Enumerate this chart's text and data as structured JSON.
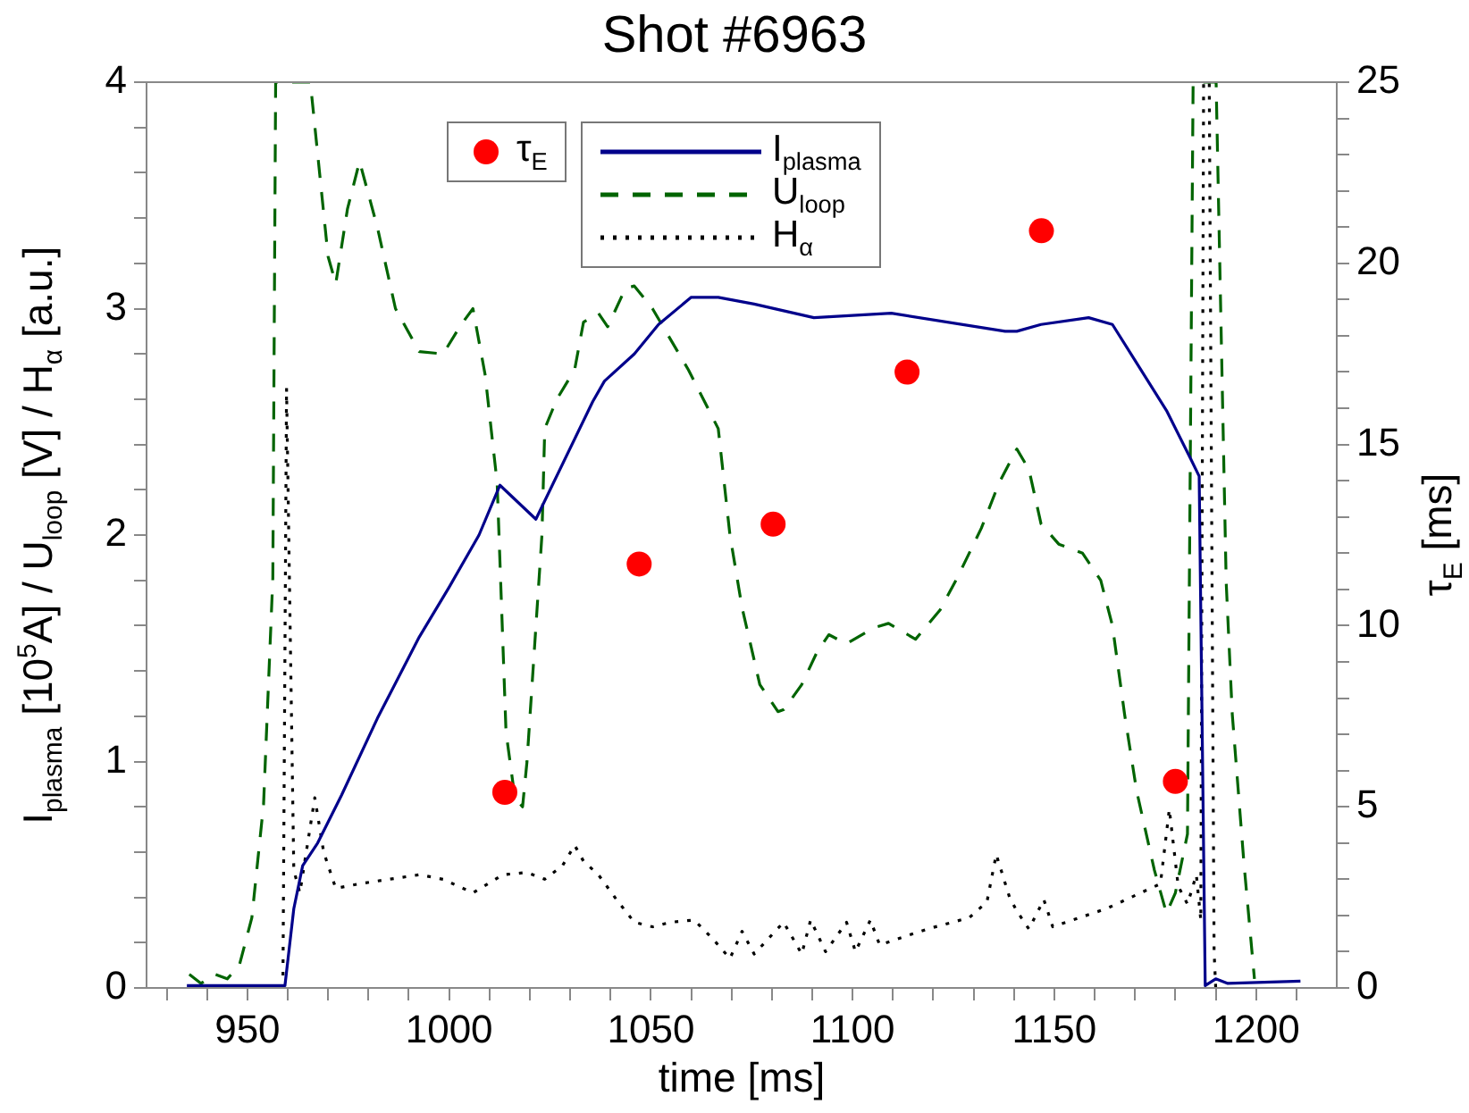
{
  "chart_data": {
    "type": "line",
    "title": "Shot #6963",
    "xlabel": "time [ms]",
    "ylabel": "I$_{plasma}$ [10$^{5}$A] / U$_{loop}$ [V] / H$_{α}$ [a.u.]",
    "y2label": "τ$_{E}$ [ms]",
    "xlim": [
      925,
      1220
    ],
    "xticks": [
      {
        "value": 930,
        "label": null
      },
      {
        "value": 940,
        "label": null
      },
      950,
      {
        "value": 960,
        "label": null
      },
      {
        "value": 970,
        "label": null
      },
      {
        "value": 980,
        "label": null
      },
      {
        "value": 990,
        "label": null
      },
      1000,
      {
        "value": 1010,
        "label": null
      },
      {
        "value": 1020,
        "label": null
      },
      {
        "value": 1030,
        "label": null
      },
      {
        "value": 1040,
        "label": null
      },
      1050,
      {
        "value": 1060,
        "label": null
      },
      {
        "value": 1070,
        "label": null
      },
      {
        "value": 1080,
        "label": null
      },
      {
        "value": 1090,
        "label": null
      },
      1100,
      {
        "value": 1110,
        "label": null
      },
      {
        "value": 1120,
        "label": null
      },
      {
        "value": 1130,
        "label": null
      },
      {
        "value": 1140,
        "label": null
      },
      1150,
      {
        "value": 1160,
        "label": null
      },
      {
        "value": 1170,
        "label": null
      },
      {
        "value": 1180,
        "label": null
      },
      {
        "value": 1190,
        "label": null
      },
      1200,
      {
        "value": 1210,
        "label": null
      }
    ],
    "ylim": [
      0,
      4
    ],
    "yticks": [
      0,
      {
        "value": 0.2,
        "label": null
      },
      {
        "value": 0.4,
        "label": null
      },
      {
        "value": 0.6,
        "label": null
      },
      {
        "value": 0.8,
        "label": null
      },
      1,
      {
        "value": 1.2,
        "label": null
      },
      {
        "value": 1.4,
        "label": null
      },
      {
        "value": 1.6,
        "label": null
      },
      {
        "value": 1.8,
        "label": null
      },
      2,
      {
        "value": 2.2,
        "label": null
      },
      {
        "value": 2.4,
        "label": null
      },
      {
        "value": 2.6,
        "label": null
      },
      {
        "value": 2.8,
        "label": null
      },
      3,
      {
        "value": 3.2,
        "label": null
      },
      {
        "value": 3.4,
        "label": null
      },
      {
        "value": 3.6,
        "label": null
      },
      {
        "value": 3.8,
        "label": null
      },
      4
    ],
    "y2lim": [
      0,
      25
    ],
    "y2ticks": [
      0,
      {
        "value": 1,
        "label": null
      },
      {
        "value": 2,
        "label": null
      },
      {
        "value": 3,
        "label": null
      },
      {
        "value": 4,
        "label": null
      },
      5,
      {
        "value": 6,
        "label": null
      },
      {
        "value": 7,
        "label": null
      },
      {
        "value": 8,
        "label": null
      },
      {
        "value": 9,
        "label": null
      },
      10,
      {
        "value": 11,
        "label": null
      },
      {
        "value": 12,
        "label": null
      },
      {
        "value": 13,
        "label": null
      },
      {
        "value": 14,
        "label": null
      },
      15,
      {
        "value": 16,
        "label": null
      },
      {
        "value": 17,
        "label": null
      },
      {
        "value": 18,
        "label": null
      },
      {
        "value": 19,
        "label": null
      },
      20,
      {
        "value": 21,
        "label": null
      },
      {
        "value": 22,
        "label": null
      },
      {
        "value": 23,
        "label": null
      },
      {
        "value": 24,
        "label": null
      },
      25
    ],
    "grid": false,
    "legend": "top",
    "series": [
      {
        "name": "τ$_{E}$",
        "type": "scatter",
        "axis": "y2",
        "marker": "circle",
        "color": "#ff0000",
        "x": [
          1013.8,
          1047.1,
          1080.3,
          1113.5,
          1146.8,
          1180
        ],
        "values": [
          5.4,
          11.7,
          12.8,
          17.0,
          20.9,
          5.7
        ]
      },
      {
        "name": "I$_{plasma}$",
        "type": "line",
        "line_style": "solid",
        "marker": "none",
        "color": "#00008b",
        "x": [
          935,
          959.3,
          961.5,
          963.7,
          967.4,
          973.3,
          982.2,
          992.6,
          1000,
          1007.4,
          1012.6,
          1021.5,
          1035.6,
          1038.5,
          1045.9,
          1051.9,
          1060,
          1066.7,
          1075.6,
          1090.4,
          1109.6,
          1137.8,
          1140.7,
          1146.7,
          1158.5,
          1164.4,
          1170.4,
          1177.8,
          1183.7,
          1185.9,
          1187.4,
          1190,
          1193,
          1211
        ],
        "values": [
          0.01,
          0.01,
          0.35,
          0.54,
          0.64,
          0.85,
          1.19,
          1.55,
          1.77,
          2.0,
          2.22,
          2.07,
          2.59,
          2.68,
          2.8,
          2.93,
          3.05,
          3.05,
          3.02,
          2.96,
          2.98,
          2.9,
          2.9,
          2.93,
          2.96,
          2.93,
          2.76,
          2.55,
          2.34,
          2.26,
          0.01,
          0.04,
          0.02,
          0.03
        ]
      },
      {
        "name": "U$_{loop}$",
        "type": "line",
        "line_style": "dashed",
        "marker": "none",
        "color": "#006400",
        "x": [
          935.6,
          938.5,
          942,
          945,
          948,
          951.1,
          954,
          956.3,
          957,
          965.6,
          970,
          971.9,
          974.8,
          977.8,
          982.2,
          986.7,
          992.6,
          998.5,
          1003,
          1005.9,
          1008.9,
          1011.9,
          1014.1,
          1016.3,
          1018.2,
          1019.3,
          1023,
          1023.7,
          1026.7,
          1031.1,
          1033.3,
          1037,
          1039.3,
          1043.7,
          1045.9,
          1050.4,
          1059.3,
          1066.7,
          1069.6,
          1072.6,
          1077,
          1081.5,
          1083,
          1087.4,
          1091.1,
          1094.1,
          1098.5,
          1105.2,
          1108.9,
          1115.6,
          1121.7,
          1125.9,
          1131.9,
          1136.3,
          1140.7,
          1143.7,
          1146.7,
          1151.1,
          1157,
          1161.5,
          1164.4,
          1167.4,
          1170.4,
          1174.8,
          1177.8,
          1180,
          1183,
          1184.4,
          1190.1,
          1192.6,
          1194.1,
          1197,
          1199.6
        ],
        "values": [
          0.06,
          0.02,
          0.06,
          0.04,
          0.1,
          0.31,
          0.81,
          1.81,
          4.0,
          4.0,
          3.23,
          3.11,
          3.44,
          3.65,
          3.36,
          3.0,
          2.81,
          2.8,
          2.93,
          3.0,
          2.71,
          2.23,
          1.13,
          0.84,
          0.8,
          1.0,
          2.0,
          2.47,
          2.6,
          2.73,
          2.94,
          2.98,
          2.92,
          3.09,
          3.1,
          3.0,
          2.73,
          2.47,
          2.0,
          1.68,
          1.34,
          1.22,
          1.23,
          1.34,
          1.48,
          1.56,
          1.52,
          1.59,
          1.61,
          1.54,
          1.67,
          1.81,
          2.03,
          2.23,
          2.38,
          2.29,
          2.05,
          1.96,
          1.92,
          1.8,
          1.6,
          1.21,
          0.87,
          0.52,
          0.33,
          0.42,
          0.68,
          4.0,
          4.0,
          1.79,
          1.21,
          0.55,
          0.04
        ]
      },
      {
        "name": "H$_{α}$",
        "type": "line",
        "line_style": "dotted",
        "marker": "none",
        "color": "#000000",
        "x": [
          958.8,
          959.7,
          961.5,
          963,
          966.7,
          968.9,
          971.9,
          977.8,
          992.6,
          998.5,
          1005.9,
          1013.3,
          1019.3,
          1023.7,
          1028.1,
          1031.1,
          1033.3,
          1037,
          1041.5,
          1045.9,
          1050.4,
          1054.8,
          1060.7,
          1065.2,
          1069.6,
          1072.6,
          1075.6,
          1082.9,
          1087.4,
          1089.6,
          1093.3,
          1098.5,
          1100.7,
          1104.4,
          1106.7,
          1118.5,
          1128.9,
          1133.3,
          1135.6,
          1138.9,
          1140.7,
          1143.7,
          1147.4,
          1149.6,
          1162.9,
          1176.3,
          1178.5,
          1180.7,
          1183,
          1185.2,
          1186.3,
          1187,
          1188.4,
          1189.6,
          1190
        ],
        "values": [
          0.0,
          2.65,
          0.52,
          0.42,
          0.84,
          0.6,
          0.44,
          0.46,
          0.5,
          0.48,
          0.42,
          0.5,
          0.51,
          0.48,
          0.54,
          0.63,
          0.56,
          0.5,
          0.39,
          0.29,
          0.27,
          0.29,
          0.3,
          0.22,
          0.13,
          0.25,
          0.15,
          0.29,
          0.15,
          0.3,
          0.16,
          0.29,
          0.16,
          0.3,
          0.19,
          0.26,
          0.31,
          0.38,
          0.59,
          0.4,
          0.34,
          0.26,
          0.39,
          0.27,
          0.35,
          0.46,
          0.79,
          0.45,
          0.37,
          0.5,
          0.3,
          4.0,
          4.0,
          0.16,
          0.0
        ]
      }
    ]
  }
}
